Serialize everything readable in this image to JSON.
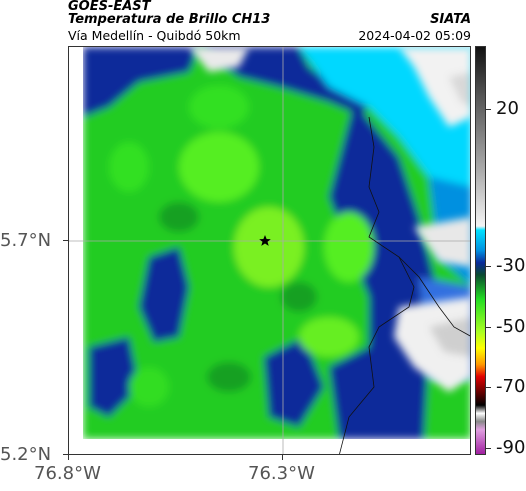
{
  "header": {
    "satellite": "GOES-EAST",
    "product": "Temperatura de Brillo CH13",
    "region": "Vía Medellín - Quibdó 50km",
    "brand": "SIATA",
    "timestamp": "2024-04-02 05:09"
  },
  "axes": {
    "lat_ticks": [
      "5.7°N",
      "5.2°N"
    ],
    "lon_ticks": [
      "76.8°W",
      "76.3°W"
    ]
  },
  "colorbar": {
    "ticks": [
      "20",
      "-30",
      "-50",
      "-70",
      "-90"
    ],
    "colors": {
      "warm_light": "#f0f0f0",
      "warm_dark": "#222222",
      "cyan": "#00e0ff",
      "blue": "#0a2a9a",
      "green": "#22dd22",
      "yellow": "#ffff00",
      "red": "#e00000",
      "black": "#000000",
      "magenta": "#c040c0"
    }
  },
  "map": {
    "marker": "star",
    "marker_color": "#000000"
  }
}
